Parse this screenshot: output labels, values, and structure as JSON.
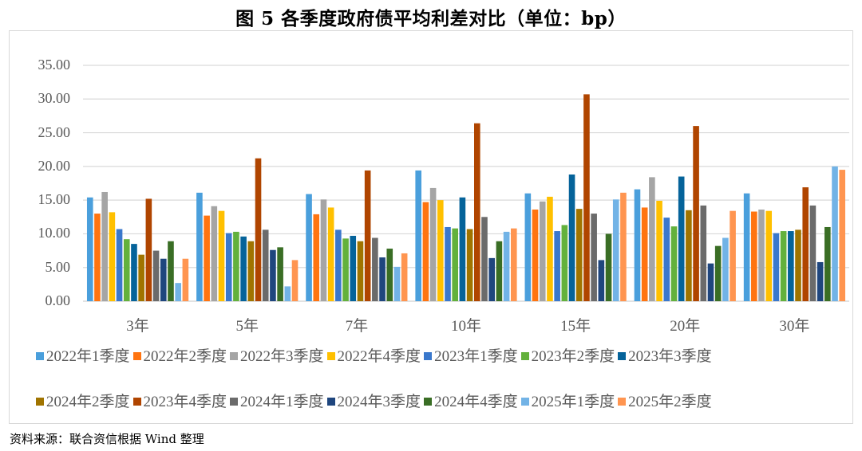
{
  "title": "图 5  各季度政府债平均利差对比（单位：bp）",
  "source": "资料来源：联合资信根据 Wind 整理",
  "chart_data": {
    "type": "bar",
    "title": "图 5 各季度政府债平均利差对比（单位：bp）",
    "xlabel": "",
    "ylabel": "",
    "ylim": [
      0,
      35
    ],
    "yticks": [
      "0.00",
      "5.00",
      "10.00",
      "15.00",
      "20.00",
      "25.00",
      "30.00",
      "35.00"
    ],
    "grid": true,
    "legend_position": "bottom",
    "categories": [
      "3年",
      "5年",
      "7年",
      "10年",
      "15年",
      "20年",
      "30年"
    ],
    "series": [
      {
        "name": "2022年1季度",
        "color": "#4a9fdc",
        "values": [
          15.4,
          16.1,
          15.9,
          19.4,
          16.0,
          16.6,
          16.0
        ]
      },
      {
        "name": "2022年2季度",
        "color": "#ff7410",
        "values": [
          13.0,
          12.7,
          12.9,
          14.7,
          13.6,
          13.9,
          13.3
        ]
      },
      {
        "name": "2022年3季度",
        "color": "#a5a5a5",
        "values": [
          16.2,
          14.1,
          15.1,
          16.8,
          14.8,
          18.4,
          13.6
        ]
      },
      {
        "name": "2022年4季度",
        "color": "#ffc000",
        "values": [
          13.2,
          13.4,
          13.9,
          15.0,
          15.5,
          14.9,
          13.4
        ]
      },
      {
        "name": "2023年1季度",
        "color": "#3a78cc",
        "values": [
          10.7,
          10.1,
          10.6,
          11.0,
          10.4,
          12.4,
          10.1
        ]
      },
      {
        "name": "2023年2季度",
        "color": "#63b13c",
        "values": [
          9.2,
          10.3,
          9.3,
          10.8,
          11.3,
          11.1,
          10.4
        ]
      },
      {
        "name": "2023年3季度",
        "color": "#05639a",
        "values": [
          8.5,
          9.6,
          9.7,
          15.4,
          18.8,
          18.5,
          10.4
        ]
      },
      {
        "name": "2024年2季度",
        "color": "#a07400",
        "values": [
          6.9,
          8.9,
          8.9,
          10.7,
          13.7,
          13.5,
          10.6
        ]
      },
      {
        "name": "2023年4季度",
        "color": "#b04500",
        "values": [
          15.2,
          21.2,
          19.4,
          26.4,
          30.7,
          26.0,
          16.9
        ]
      },
      {
        "name": "2024年1季度",
        "color": "#6b6b6b",
        "values": [
          7.5,
          10.6,
          9.4,
          12.5,
          13.0,
          14.2,
          14.2
        ]
      },
      {
        "name": "2024年3季度",
        "color": "#1f467e",
        "values": [
          6.3,
          7.6,
          6.5,
          6.4,
          6.1,
          5.6,
          5.8
        ]
      },
      {
        "name": "2024年4季度",
        "color": "#3a6e25",
        "values": [
          8.9,
          8.0,
          7.8,
          8.9,
          10.0,
          8.2,
          11.0
        ]
      },
      {
        "name": "2025年1季度",
        "color": "#72b3e6",
        "values": [
          2.7,
          2.2,
          5.1,
          10.3,
          15.1,
          9.4,
          20.0
        ]
      },
      {
        "name": "2025年2季度",
        "color": "#ff9550",
        "values": [
          6.3,
          6.1,
          7.1,
          10.8,
          16.1,
          13.4,
          19.5
        ]
      }
    ]
  },
  "legend": {
    "rows": [
      [
        0,
        1,
        2,
        3,
        4,
        5,
        6
      ],
      [
        7,
        8,
        9,
        10,
        11,
        12,
        13
      ]
    ]
  },
  "colors": {
    "gridline": "#d9d9d9",
    "axis_text": "#595959"
  }
}
